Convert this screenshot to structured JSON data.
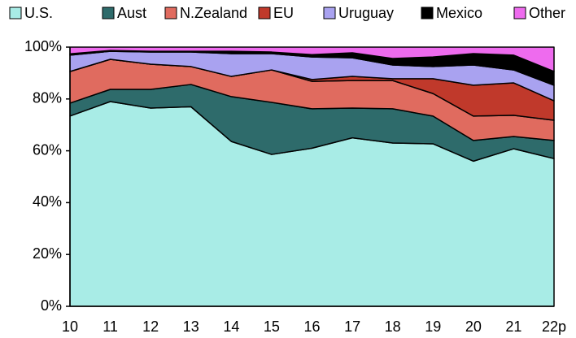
{
  "chart_data": {
    "type": "stacked_area",
    "categories": [
      "10",
      "11",
      "12",
      "13",
      "14",
      "15",
      "16",
      "17",
      "18",
      "19",
      "20",
      "21",
      "22p"
    ],
    "series": [
      {
        "name": "U.S.",
        "color": "#a8ece6",
        "values": [
          73.4,
          79,
          76.5,
          77,
          63.6,
          58.6,
          61,
          65,
          63,
          62.7,
          56,
          60.8,
          57
        ]
      },
      {
        "name": "Aust",
        "color": "#2e6b6b",
        "values": [
          5,
          4.7,
          7.2,
          8.6,
          17.3,
          20.1,
          15.2,
          11.5,
          13.2,
          10.7,
          8,
          4.7,
          7
        ]
      },
      {
        "name": "N.Zealand",
        "color": "#e06b5f",
        "values": [
          12.2,
          11.6,
          9.7,
          6.9,
          7.8,
          12.5,
          10.6,
          10.6,
          10.9,
          8.7,
          9.4,
          8.2,
          7.8
        ]
      },
      {
        "name": "EU",
        "color": "#c0392b",
        "values": [
          0,
          0,
          0,
          0,
          0,
          0,
          0.7,
          1.6,
          0.7,
          5.7,
          11.9,
          12.5,
          7.5
        ]
      },
      {
        "name": "Uruguay",
        "color": "#a9a2f0",
        "values": [
          6.3,
          3.1,
          4.7,
          5.6,
          8.8,
          6.3,
          8.7,
          7.2,
          5.3,
          4.7,
          7.8,
          5,
          6
        ]
      },
      {
        "name": "Mexico",
        "color": "#000000",
        "values": [
          0.5,
          0.3,
          0.3,
          0.3,
          0.9,
          0.6,
          0.9,
          1.9,
          2.5,
          3.7,
          4.4,
          5.7,
          5.3
        ]
      },
      {
        "name": "Other",
        "color": "#ee6bee",
        "values": [
          2.6,
          1.3,
          1.6,
          1.6,
          1.6,
          1.9,
          2.9,
          2.2,
          4.4,
          3.8,
          2.5,
          3.1,
          9.4
        ]
      }
    ],
    "ylim": [
      0,
      100
    ],
    "yticks": [
      {
        "value": 0,
        "label": "0%"
      },
      {
        "value": 20,
        "label": "20%"
      },
      {
        "value": 40,
        "label": "40%"
      },
      {
        "value": 60,
        "label": "60%"
      },
      {
        "value": 80,
        "label": "80%"
      },
      {
        "value": 100,
        "label": "100%"
      }
    ],
    "legend": "top"
  }
}
